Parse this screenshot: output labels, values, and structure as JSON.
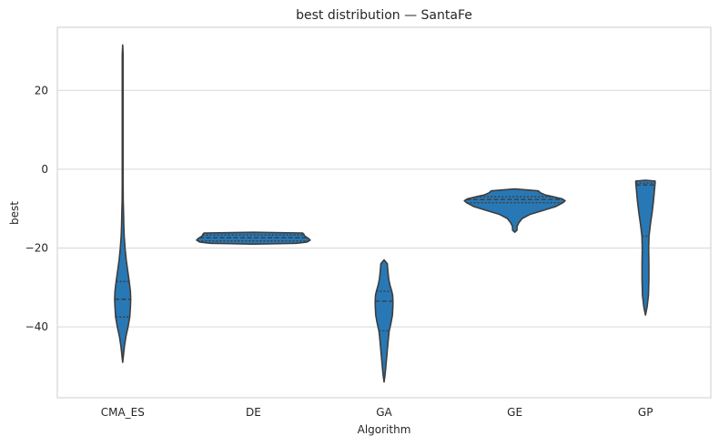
{
  "chart_data": {
    "type": "violin",
    "title": "best distribution — SantaFe",
    "xlabel": "Algorithm",
    "ylabel": "best",
    "ylim": [
      -58,
      36
    ],
    "yticks": [
      20,
      0,
      -20,
      -40
    ],
    "ytick_labels": [
      "20",
      "0",
      "−20",
      "−40"
    ],
    "grid": "horizontal",
    "inner": "quartile",
    "colors": {
      "fill": "#2878b5",
      "edge": "#3d3d3d",
      "grid": "#d9d9d9",
      "spine": "#cccccc"
    },
    "categories": [
      "CMA_ES",
      "DE",
      "GA",
      "GE",
      "GP"
    ],
    "series": [
      {
        "category": "CMA_ES",
        "quartiles": [
          -37.5,
          -33.0,
          -28.5
        ],
        "profile": [
          [
            -49.0,
            0.0
          ],
          [
            -47.5,
            0.6
          ],
          [
            -45.0,
            1.6
          ],
          [
            -42.5,
            3.0
          ],
          [
            -40.0,
            5.0
          ],
          [
            -37.5,
            6.6
          ],
          [
            -35.0,
            7.2
          ],
          [
            -33.0,
            7.5
          ],
          [
            -31.0,
            7.2
          ],
          [
            -28.5,
            6.1
          ],
          [
            -26.0,
            4.8
          ],
          [
            -23.0,
            3.3
          ],
          [
            -20.0,
            2.2
          ],
          [
            -17.0,
            1.4
          ],
          [
            -14.0,
            1.0
          ],
          [
            -11.0,
            0.8
          ],
          [
            -8.0,
            0.5
          ],
          [
            -4.0,
            0.4
          ],
          [
            0.0,
            0.4
          ],
          [
            5.0,
            0.4
          ],
          [
            10.0,
            0.4
          ],
          [
            15.0,
            0.4
          ],
          [
            20.0,
            0.4
          ],
          [
            25.0,
            0.4
          ],
          [
            29.0,
            0.4
          ],
          [
            31.5,
            0.0
          ]
        ]
      },
      {
        "category": "DE",
        "quartiles": [
          -18.2,
          -17.4,
          -16.7
        ],
        "profile": [
          [
            -19.0,
            0.0
          ],
          [
            -18.8,
            40.0
          ],
          [
            -18.5,
            50.0
          ],
          [
            -18.0,
            53.0
          ],
          [
            -17.5,
            51.0
          ],
          [
            -17.0,
            48.0
          ],
          [
            -16.5,
            47.0
          ],
          [
            -16.2,
            46.0
          ],
          [
            -16.0,
            0.0
          ]
        ]
      },
      {
        "category": "GA",
        "quartiles": [
          -41.0,
          -33.5,
          -31.0
        ],
        "profile": [
          [
            -54.0,
            0.0
          ],
          [
            -52.0,
            1.0
          ],
          [
            -49.0,
            2.0
          ],
          [
            -46.0,
            3.0
          ],
          [
            -43.0,
            4.0
          ],
          [
            -41.0,
            4.8
          ],
          [
            -39.0,
            6.5
          ],
          [
            -37.0,
            7.8
          ],
          [
            -35.0,
            8.2
          ],
          [
            -33.5,
            8.3
          ],
          [
            -32.0,
            8.0
          ],
          [
            -31.0,
            7.2
          ],
          [
            -29.5,
            5.6
          ],
          [
            -28.0,
            4.4
          ],
          [
            -26.0,
            3.6
          ],
          [
            -24.0,
            3.0
          ],
          [
            -23.0,
            0.0
          ]
        ]
      },
      {
        "category": "GE",
        "quartiles": [
          -8.5,
          -7.7,
          -7.0
        ],
        "profile": [
          [
            -16.0,
            0.0
          ],
          [
            -15.5,
            2.0
          ],
          [
            -14.5,
            2.2
          ],
          [
            -13.5,
            4.0
          ],
          [
            -12.5,
            7.0
          ],
          [
            -11.5,
            14.0
          ],
          [
            -10.5,
            26.0
          ],
          [
            -9.5,
            38.0
          ],
          [
            -8.5,
            45.0
          ],
          [
            -8.0,
            47.0
          ],
          [
            -7.5,
            44.0
          ],
          [
            -7.0,
            36.0
          ],
          [
            -6.5,
            28.0
          ],
          [
            -6.0,
            24.0
          ],
          [
            -5.5,
            22.0
          ],
          [
            -5.0,
            0.0
          ]
        ]
      },
      {
        "category": "GP",
        "quartiles": [
          -17.0,
          -4.0,
          -3.5
        ],
        "profile": [
          [
            -37.0,
            0.0
          ],
          [
            -35.0,
            1.5
          ],
          [
            -32.0,
            2.8
          ],
          [
            -28.0,
            3.2
          ],
          [
            -24.0,
            3.2
          ],
          [
            -20.0,
            3.0
          ],
          [
            -17.0,
            3.3
          ],
          [
            -14.0,
            4.6
          ],
          [
            -11.0,
            6.2
          ],
          [
            -8.0,
            7.5
          ],
          [
            -5.0,
            8.5
          ],
          [
            -3.5,
            9.0
          ],
          [
            -3.0,
            9.0
          ],
          [
            -2.8,
            0.0
          ]
        ]
      }
    ]
  }
}
